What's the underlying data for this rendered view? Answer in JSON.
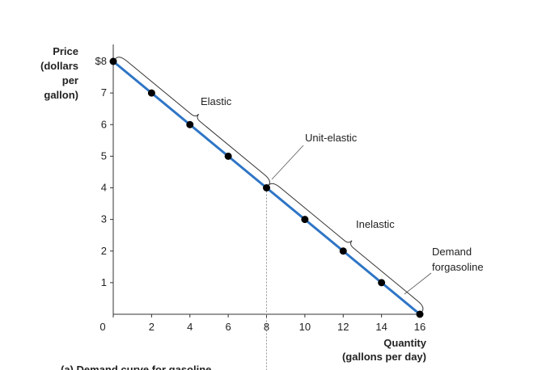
{
  "chart_data": {
    "type": "line",
    "x": [
      0,
      2,
      4,
      6,
      8,
      10,
      12,
      14,
      16
    ],
    "series": [
      {
        "name": "Demand for gasoline",
        "color": "#2e75c6",
        "values": [
          8,
          7,
          6,
          5,
          4,
          3,
          2,
          1,
          0
        ]
      }
    ],
    "xlim": [
      0,
      16
    ],
    "ylim": [
      0,
      8
    ],
    "xticks": [
      0,
      2,
      4,
      6,
      8,
      10,
      12,
      14,
      16
    ],
    "yticks": [
      1,
      2,
      3,
      4,
      5,
      6,
      7,
      {
        "value": 8,
        "label": "$8"
      }
    ],
    "ylabel": [
      "Price",
      "(dollars",
      "per",
      "gallon)"
    ],
    "xlabel": [
      "Quantity",
      "(gallons per day)"
    ],
    "annotations": [
      "Elastic",
      "Unit-elastic",
      "Inelastic"
    ],
    "legend_label": [
      "Demand",
      "forgasoline"
    ],
    "caption": "(a) Demand curve for gasoline"
  }
}
